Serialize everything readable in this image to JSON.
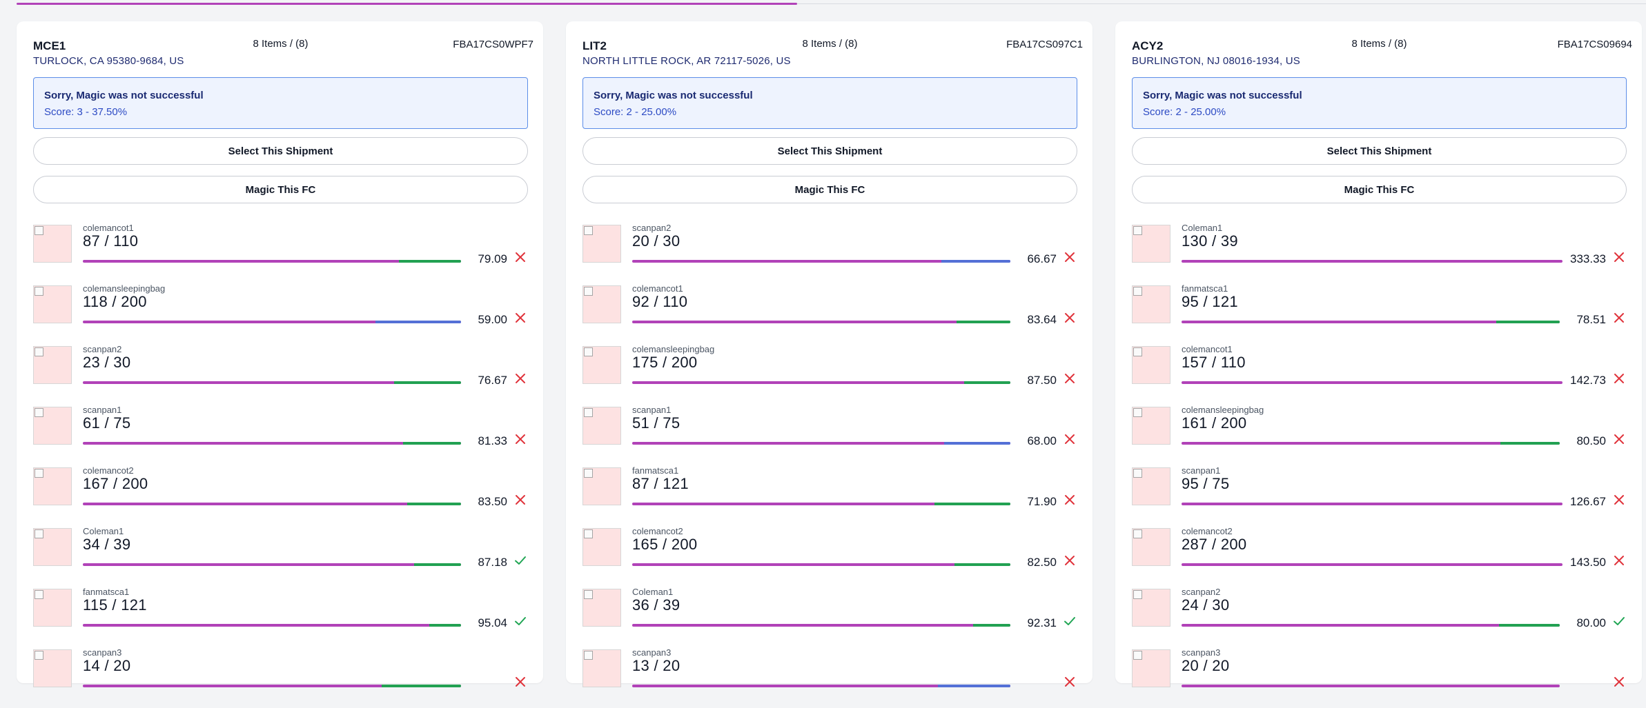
{
  "progress": {
    "fraction": 0.479,
    "color": "#b142b8"
  },
  "colors": {
    "purple": "#b142b8",
    "green": "#22a152",
    "blue": "#5470d6",
    "red": "#e0333b",
    "check": "#1fa553"
  },
  "cards": [
    {
      "fc": "MCE1",
      "items_count": "8 Items / (8)",
      "shipment_id": "FBA17CS0WPF7",
      "address": "TURLOCK, CA 95380-9684, US",
      "alert_title": "Sorry, Magic was not successful",
      "alert_score": "Score: 3 - 37.50%",
      "select_label": "Select This Shipment",
      "magic_label": "Magic This FC",
      "items": [
        {
          "sku": "colemancot1",
          "qty": "87 / 110",
          "pct": "79.09",
          "ratio": 0.7909,
          "status": "fail",
          "icon": "close-icon"
        },
        {
          "sku": "colemansleepingbag",
          "qty": "118 / 200",
          "pct": "59.00",
          "ratio": 0.59,
          "status": "fail",
          "icon": "close-icon"
        },
        {
          "sku": "scanpan2",
          "qty": "23 / 30",
          "pct": "76.67",
          "ratio": 0.7667,
          "status": "fail",
          "icon": "close-icon"
        },
        {
          "sku": "scanpan1",
          "qty": "61 / 75",
          "pct": "81.33",
          "ratio": 0.8133,
          "status": "fail",
          "icon": "close-icon"
        },
        {
          "sku": "colemancot2",
          "qty": "167 / 200",
          "pct": "83.50",
          "ratio": 0.835,
          "status": "fail",
          "icon": "close-icon"
        },
        {
          "sku": "Coleman1",
          "qty": "34 / 39",
          "pct": "87.18",
          "ratio": 0.8718,
          "status": "ok",
          "icon": "check-icon"
        },
        {
          "sku": "fanmatsca1",
          "qty": "115 / 121",
          "pct": "95.04",
          "ratio": 0.9504,
          "status": "ok",
          "icon": "check-icon"
        },
        {
          "sku": "scanpan3",
          "qty": "14 / 20",
          "pct": "",
          "ratio": 0.7,
          "status": "fail",
          "icon": "close-icon"
        }
      ]
    },
    {
      "fc": "LIT2",
      "items_count": "8 Items / (8)",
      "shipment_id": "FBA17CS097C1",
      "address": "NORTH LITTLE ROCK, AR 72117-5026, US",
      "alert_title": "Sorry, Magic was not successful",
      "alert_score": "Score: 2 - 25.00%",
      "select_label": "Select This Shipment",
      "magic_label": "Magic This FC",
      "items": [
        {
          "sku": "scanpan2",
          "qty": "20 / 30",
          "pct": "66.67",
          "ratio": 0.6667,
          "status": "fail",
          "icon": "close-icon"
        },
        {
          "sku": "colemancot1",
          "qty": "92 / 110",
          "pct": "83.64",
          "ratio": 0.8364,
          "status": "fail",
          "icon": "close-icon"
        },
        {
          "sku": "colemansleepingbag",
          "qty": "175 / 200",
          "pct": "87.50",
          "ratio": 0.875,
          "status": "fail",
          "icon": "close-icon"
        },
        {
          "sku": "scanpan1",
          "qty": "51 / 75",
          "pct": "68.00",
          "ratio": 0.68,
          "status": "fail",
          "icon": "close-icon"
        },
        {
          "sku": "fanmatsca1",
          "qty": "87 / 121",
          "pct": "71.90",
          "ratio": 0.719,
          "status": "fail",
          "icon": "close-icon"
        },
        {
          "sku": "colemancot2",
          "qty": "165 / 200",
          "pct": "82.50",
          "ratio": 0.825,
          "status": "fail",
          "icon": "close-icon"
        },
        {
          "sku": "Coleman1",
          "qty": "36 / 39",
          "pct": "92.31",
          "ratio": 0.9231,
          "status": "ok",
          "icon": "check-icon"
        },
        {
          "sku": "scanpan3",
          "qty": "13 / 20",
          "pct": "",
          "ratio": 0.65,
          "status": "fail",
          "icon": "close-icon"
        }
      ]
    },
    {
      "fc": "ACY2",
      "items_count": "8 Items / (8)",
      "shipment_id": "FBA17CS09694",
      "address": "BURLINGTON, NJ 08016-1934, US",
      "alert_title": "Sorry, Magic was not successful",
      "alert_score": "Score: 2 - 25.00%",
      "select_label": "Select This Shipment",
      "magic_label": "Magic This FC",
      "items": [
        {
          "sku": "Coleman1",
          "qty": "130 / 39",
          "pct": "333.33",
          "ratio": 3.3333,
          "status": "fail",
          "icon": "close-icon"
        },
        {
          "sku": "fanmatsca1",
          "qty": "95 / 121",
          "pct": "78.51",
          "ratio": 0.7851,
          "status": "fail",
          "icon": "close-icon"
        },
        {
          "sku": "colemancot1",
          "qty": "157 / 110",
          "pct": "142.73",
          "ratio": 1.4273,
          "status": "fail",
          "icon": "close-icon"
        },
        {
          "sku": "colemansleepingbag",
          "qty": "161 / 200",
          "pct": "80.50",
          "ratio": 0.805,
          "status": "fail",
          "icon": "close-icon"
        },
        {
          "sku": "scanpan1",
          "qty": "95 / 75",
          "pct": "126.67",
          "ratio": 1.2667,
          "status": "fail",
          "icon": "close-icon"
        },
        {
          "sku": "colemancot2",
          "qty": "287 / 200",
          "pct": "143.50",
          "ratio": 1.435,
          "status": "fail",
          "icon": "close-icon"
        },
        {
          "sku": "scanpan2",
          "qty": "24 / 30",
          "pct": "80.00",
          "ratio": 0.8,
          "status": "ok",
          "icon": "check-icon"
        },
        {
          "sku": "scanpan3",
          "qty": "20 / 20",
          "pct": "",
          "ratio": 1.0,
          "status": "fail",
          "icon": "close-icon"
        }
      ]
    }
  ]
}
